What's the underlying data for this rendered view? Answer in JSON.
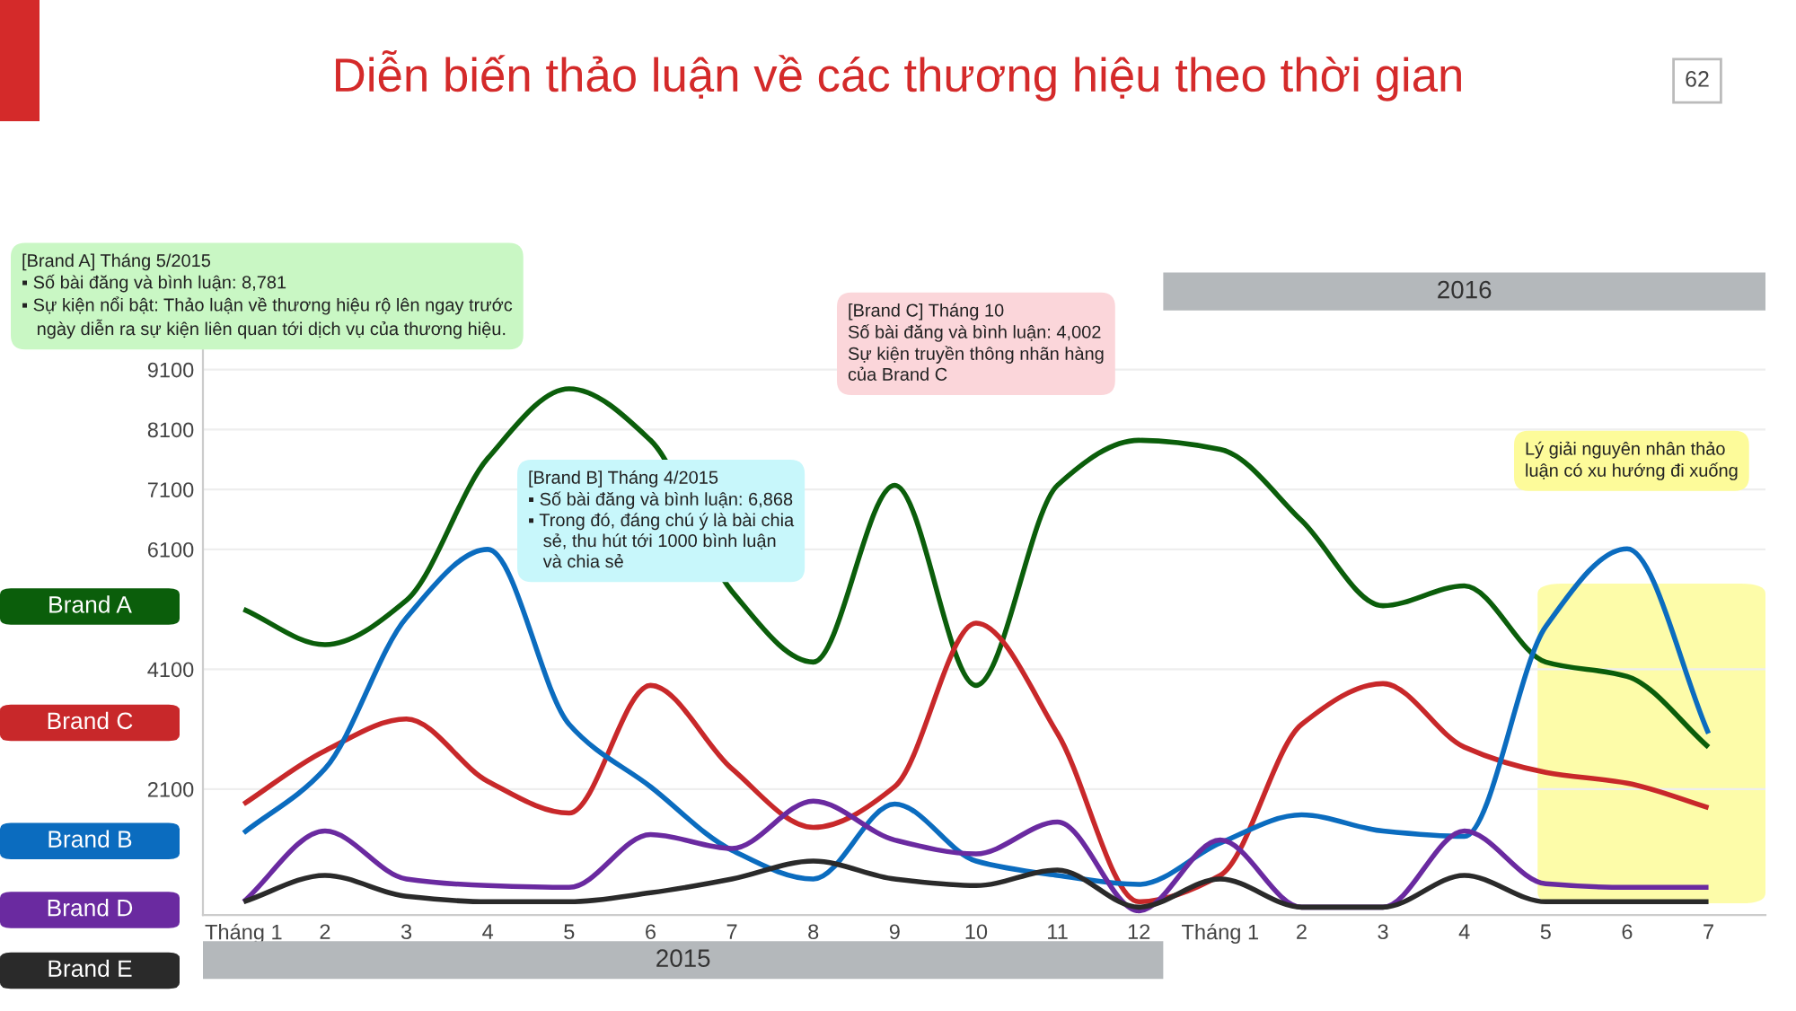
{
  "chart_data": {
    "type": "line",
    "title": "Diễn biến thảo luận về các thương hiệu theo thời gian",
    "categories": [
      "Tháng 1",
      "2",
      "3",
      "4",
      "5",
      "6",
      "7",
      "8",
      "9",
      "10",
      "11",
      "12",
      "Tháng 1",
      "2",
      "3",
      "4",
      "5",
      "6",
      "7"
    ],
    "series": [
      {
        "name": "Brand A",
        "color": "#0b5e0b",
        "values": [
          5100,
          4510,
          5250,
          7620,
          8780,
          7920,
          5400,
          4220,
          7170,
          3830,
          7170,
          7920,
          7770,
          6580,
          5160,
          5490,
          4220,
          3980,
          2800
        ]
      },
      {
        "name": "Brand C",
        "color": "#c8282a",
        "values": [
          1850,
          2740,
          3270,
          2230,
          1700,
          3830,
          2440,
          1460,
          2140,
          4870,
          3030,
          220,
          660,
          3180,
          3860,
          2800,
          2380,
          2200,
          1790
        ]
      },
      {
        "name": "Brand B",
        "color": "#0b6cbf",
        "values": [
          1370,
          2440,
          4960,
          6100,
          3180,
          2140,
          1080,
          600,
          1850,
          900,
          660,
          510,
          1200,
          1670,
          1400,
          1310,
          4810,
          6110,
          3030
        ]
      },
      {
        "name": "Brand D",
        "color": "#6a2aa0",
        "values": [
          220,
          1400,
          600,
          490,
          460,
          1340,
          1110,
          1900,
          1250,
          1020,
          1550,
          70,
          1250,
          130,
          130,
          1400,
          520,
          460,
          460
        ]
      },
      {
        "name": "Brand E",
        "color": "#2a2a2a",
        "values": [
          220,
          660,
          310,
          220,
          220,
          370,
          600,
          900,
          600,
          490,
          750,
          130,
          600,
          130,
          130,
          660,
          220,
          220,
          220
        ]
      }
    ],
    "ylim": [
      0,
      9700
    ],
    "yticks": [
      9100,
      8100,
      7100,
      6100,
      4100,
      2100
    ],
    "grid": "y",
    "legend": "left",
    "marker": "none",
    "line_style": "solid",
    "annotations": [
      "2015",
      "2016",
      "[Brand A] Tháng 5/2015\n▪ Số bài đăng và bình luận: 8,781\n▪ Sự kiện nổi bật: Thảo luận về thương hiệu rộ lên ngay trước\n   ngày diễn ra sự kiện liên quan tới dịch vụ của thương hiệu.",
      "[Brand B] Tháng 4/2015\n▪ Số bài đăng và bình luận: 6,868\n▪ Trong đó, đáng chú ý là bài chia\n   sẻ, thu hút tới 1000 bình luận\n   và chia sẻ",
      "[Brand C] Tháng 10\nSố bài đăng và bình luận: 4,002\nSự kiện truyền thông nhãn hàng\ncủa Brand C",
      "Lý giải nguyên nhân thảo\nluận có xu hướng đi xuống",
      "62"
    ]
  }
}
